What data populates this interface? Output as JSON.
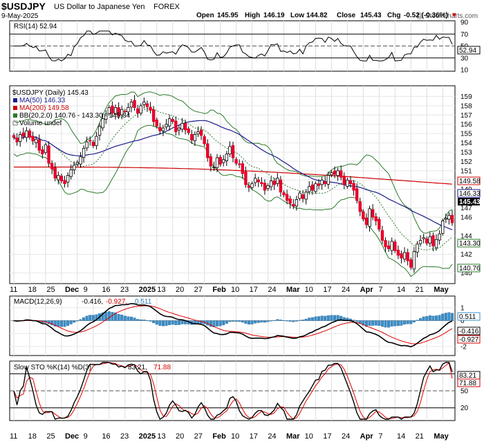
{
  "header": {
    "symbol": "$USDJPY",
    "description": "US Dollar to Japanese Yen",
    "exchange": "FOREX",
    "date": "9-May-2025",
    "watermark": "@ StockCharts.com",
    "open_label": "Open",
    "open": "145.95",
    "high_label": "High",
    "high": "146.19",
    "low_label": "Low",
    "low": "144.82",
    "close_label": "Close",
    "close": "145.43",
    "chg_label": "Chg",
    "chg": "-0.52 (-0.36%)",
    "chg_arrow": "▼"
  },
  "colors": {
    "up_candle": "#ffffff",
    "down_candle": "#e8002a",
    "ma50": "#1a1a8c",
    "ma200": "#cc0000",
    "bb": "#2a7a2a",
    "macd_hist": "#3a8ec8",
    "stoch_k": "#000000",
    "stoch_d": "#e00000"
  },
  "rsi_panel": {
    "legend": "RSI(14) 52.94",
    "last": "52.94",
    "ticks": [
      "90",
      "70",
      "50",
      "30",
      "10"
    ]
  },
  "price_panel": {
    "legend_main": "$USDJPY (Daily) 145.43",
    "legend_ma50": "MA(50) 146.33",
    "legend_ma200": "MA(200) 149.58",
    "legend_bb": "BB(20,2.0) 140.76 - 143.30 - 145.84",
    "legend_vol": "Volume undef",
    "ticks": [
      "159",
      "158",
      "157",
      "156",
      "155",
      "154",
      "153",
      "152",
      "151",
      "150",
      "149",
      "147",
      "146",
      "144",
      "142",
      "140"
    ],
    "tag_ma200": "149.58",
    "tag_ma50": "146.33",
    "tag_close": "145.43",
    "tag_bbmid": "143.30",
    "tag_bblow": "140.76"
  },
  "macd_panel": {
    "legend_name": "MACD(12,26,9)",
    "legend_macd": "-0.416,",
    "legend_signal": "-0.927,",
    "legend_hist": "0.511",
    "ticks": [
      "1",
      "0",
      "-1",
      "-2"
    ],
    "tag_hist": "0.511",
    "tag_macd": "-0.416",
    "tag_signal": "-0.927"
  },
  "stoch_panel": {
    "legend_name": "Slow STO %K(14) %D(3)",
    "legend_k": "83.21,",
    "legend_d": "71.88",
    "ticks": [
      "80",
      "50",
      "20"
    ],
    "tag_k": "83.21",
    "tag_d": "71.88"
  },
  "x_axis_labels": [
    {
      "label": "11",
      "bold": false
    },
    {
      "label": "18",
      "bold": false
    },
    {
      "label": "25",
      "bold": false
    },
    {
      "label": "Dec",
      "bold": true
    },
    {
      "label": "9",
      "bold": false
    },
    {
      "label": "16",
      "bold": false
    },
    {
      "label": "23",
      "bold": false
    },
    {
      "label": "2025",
      "bold": true
    },
    {
      "label": "13",
      "bold": false
    },
    {
      "label": "20",
      "bold": false
    },
    {
      "label": "27",
      "bold": false
    },
    {
      "label": "Feb",
      "bold": true
    },
    {
      "label": "10",
      "bold": false
    },
    {
      "label": "17",
      "bold": false
    },
    {
      "label": "24",
      "bold": false
    },
    {
      "label": "Mar",
      "bold": true
    },
    {
      "label": "10",
      "bold": false
    },
    {
      "label": "17",
      "bold": false
    },
    {
      "label": "24",
      "bold": false
    },
    {
      "label": "Apr",
      "bold": true
    },
    {
      "label": "7",
      "bold": false
    },
    {
      "label": "14",
      "bold": false
    },
    {
      "label": "21",
      "bold": false
    },
    {
      "label": "May",
      "bold": true
    }
  ],
  "chart_data": {
    "type": "line",
    "title": "$USDJPY US Dollar to Japanese Yen FOREX",
    "close_series": [
      154.6,
      154.1,
      154.9,
      154.7,
      155.3,
      154.6,
      154.2,
      154.4,
      153.2,
      152.8,
      153.8,
      151.8,
      151.2,
      150.2,
      150.5,
      149.9,
      149.6,
      150.5,
      151.1,
      151.6,
      151.9,
      152.5,
      153.4,
      154.1,
      154.2,
      153.7,
      154.7,
      155.8,
      156.6,
      157.1,
      157.8,
      157.2,
      157.8,
      156.9,
      157.6,
      157.4,
      157.8,
      158.4,
      157.8,
      157.2,
      158.0,
      158.4,
      157.9,
      157.5,
      156.3,
      155.8,
      155.3,
      155.6,
      156.0,
      156.6,
      156.3,
      155.2,
      155.6,
      156.1,
      155.4,
      155.1,
      154.3,
      154.9,
      155.2,
      154.8,
      153.9,
      152.4,
      151.5,
      151.4,
      152.4,
      151.7,
      152.2,
      152.8,
      153.6,
      152.4,
      151.8,
      151.7,
      150.7,
      149.5,
      149.2,
      149.6,
      150.2,
      149.8,
      149.6,
      148.9,
      149.4,
      149.9,
      149.5,
      150.2,
      148.7,
      148.4,
      147.8,
      147.5,
      147.2,
      147.9,
      148.6,
      148.0,
      148.7,
      149.3,
      148.9,
      149.6,
      149.4,
      150.0,
      149.6,
      150.5,
      150.8,
      150.6,
      151.0,
      150.3,
      149.5,
      150.0,
      149.6,
      148.9,
      147.8,
      146.6,
      145.8,
      145.2,
      146.9,
      146.0,
      145.6,
      144.7,
      143.5,
      142.8,
      142.6,
      143.4,
      142.4,
      141.9,
      141.6,
      142.2,
      141.3,
      140.6,
      142.3,
      143.1,
      143.5,
      143.8,
      143.2,
      143.9,
      142.9,
      143.6,
      144.2,
      145.6,
      145.9,
      146.2,
      145.4
    ],
    "ma50_last": 146.33,
    "ma200_last": 149.58,
    "bollinger": {
      "period": 20,
      "stddev": 2.0,
      "lower": 140.76,
      "middle": 143.3,
      "upper": 145.84
    },
    "close": 145.43,
    "ohlc_last": {
      "open": 145.95,
      "high": 146.19,
      "low": 144.82,
      "close": 145.43
    },
    "rsi": {
      "period": 14,
      "last": 52.94,
      "ylim": [
        10,
        90
      ]
    },
    "macd": {
      "fast": 12,
      "slow": 26,
      "signal": 9,
      "macd": -0.416,
      "signal_value": -0.927,
      "histogram": 0.511
    },
    "stochastic": {
      "k_period": 14,
      "d_period": 3,
      "k": 83.21,
      "d": 71.88,
      "ylim": [
        0,
        100
      ]
    },
    "price_ylim": [
      139,
      160
    ]
  }
}
